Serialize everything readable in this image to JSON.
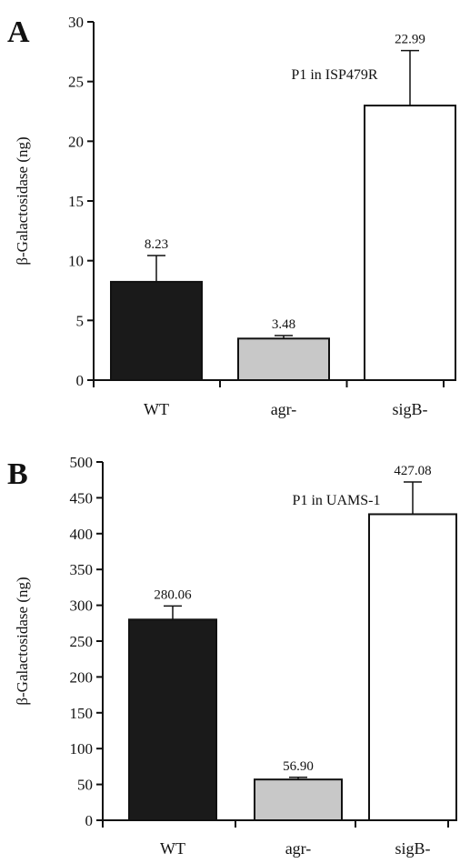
{
  "chart_data": [
    {
      "type": "bar",
      "panel": "A",
      "title": "P1 in ISP479R",
      "ylabel": "β-Galactosidase (ng)",
      "xlabel": "",
      "categories": [
        "WT",
        "agr-",
        "sigB-"
      ],
      "values": [
        8.23,
        3.48,
        22.99
      ],
      "data_labels": [
        "8.23",
        "3.48",
        "22.99"
      ],
      "error_plus": [
        2.2,
        0.25,
        4.6
      ],
      "bar_colors": [
        "#1a1a1a",
        "#c8c8c8",
        "#ffffff"
      ],
      "ylim": [
        0,
        30
      ],
      "yticks": [
        0,
        5,
        10,
        15,
        20,
        25,
        30
      ],
      "ytick_labels": [
        "0",
        "5",
        "10",
        "15",
        "20",
        "25",
        "30"
      ],
      "grid": false,
      "legend": "none"
    },
    {
      "type": "bar",
      "panel": "B",
      "title": "P1 in UAMS-1",
      "ylabel": "β-Galactosidase (ng)",
      "xlabel": "",
      "categories": [
        "WT",
        "agr-",
        "sigB-"
      ],
      "values": [
        280.06,
        56.9,
        427.08
      ],
      "data_labels": [
        "280.06",
        "56.90",
        "427.08"
      ],
      "error_plus": [
        19,
        3,
        45
      ],
      "bar_colors": [
        "#1a1a1a",
        "#c8c8c8",
        "#ffffff"
      ],
      "ylim": [
        0,
        500
      ],
      "yticks": [
        0,
        50,
        100,
        150,
        200,
        250,
        300,
        350,
        400,
        450,
        500
      ],
      "ytick_labels": [
        "0",
        "50",
        "100",
        "150",
        "200",
        "250",
        "300",
        "350",
        "400",
        "450",
        "500"
      ],
      "grid": false,
      "legend": "none"
    }
  ]
}
